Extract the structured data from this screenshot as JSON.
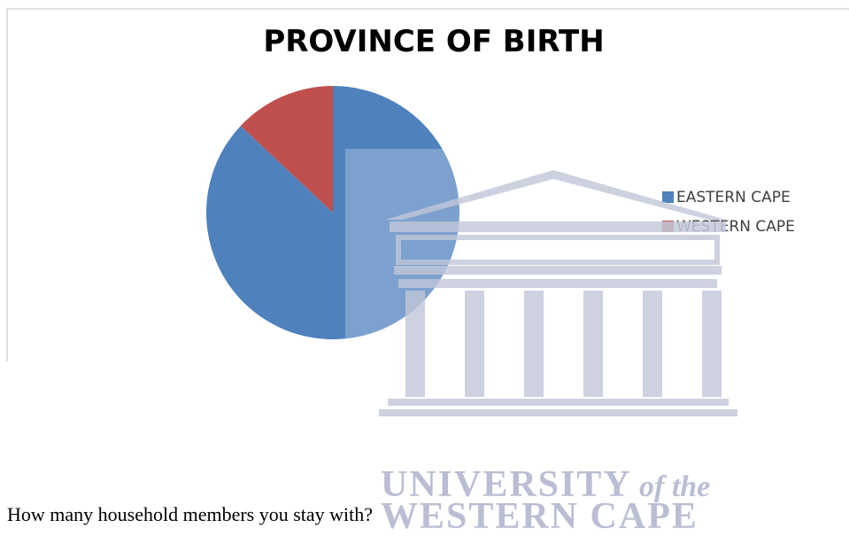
{
  "chart_data": {
    "type": "pie",
    "title": "PROVINCE OF BIRTH",
    "categories": [
      "EASTERN CAPE",
      "WESTERN CAPE"
    ],
    "values": [
      87,
      13
    ],
    "colors": [
      "#4f81bd",
      "#c0504d"
    ],
    "legend": "right"
  },
  "watermark": {
    "line1": "UNIVERSITY",
    "line1_suffix": "of the",
    "line2": "WESTERN CAPE"
  },
  "body": {
    "question": "How many household members you stay with?"
  }
}
